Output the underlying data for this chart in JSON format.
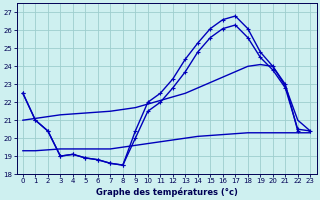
{
  "title": "Graphe des températures (°c)",
  "bg_color": "#cef0f0",
  "grid_color": "#9ecece",
  "line_color": "#0000bb",
  "ylim": [
    18,
    27.5
  ],
  "xlim": [
    -0.5,
    23.5
  ],
  "yticks": [
    18,
    19,
    20,
    21,
    22,
    23,
    24,
    25,
    26,
    27
  ],
  "xticks": [
    0,
    1,
    2,
    3,
    4,
    5,
    6,
    7,
    8,
    9,
    10,
    11,
    12,
    13,
    14,
    15,
    16,
    17,
    18,
    19,
    20,
    21,
    22,
    23
  ],
  "line1_x": [
    0,
    1,
    2,
    3,
    4,
    5,
    6,
    7,
    8,
    9,
    10,
    11,
    12,
    13,
    14,
    15,
    16,
    17,
    18,
    19,
    20,
    21,
    22
  ],
  "line1_y": [
    22.5,
    21.0,
    20.4,
    19.0,
    19.1,
    18.9,
    18.8,
    18.6,
    18.5,
    20.4,
    22.0,
    22.5,
    23.3,
    24.4,
    25.3,
    26.1,
    26.6,
    26.8,
    26.1,
    24.8,
    24.0,
    23.0,
    20.4
  ],
  "line2_x": [
    0,
    1,
    2,
    3,
    4,
    5,
    6,
    7,
    8,
    9,
    10,
    11,
    12,
    13,
    14,
    15,
    16,
    17,
    18,
    19,
    20,
    21,
    22,
    23
  ],
  "line2_y": [
    22.5,
    21.0,
    20.4,
    19.0,
    19.1,
    18.9,
    18.8,
    18.6,
    18.5,
    20.0,
    21.5,
    22.0,
    22.8,
    23.7,
    24.8,
    25.6,
    26.1,
    26.3,
    25.6,
    24.5,
    23.8,
    22.8,
    20.5,
    20.4
  ],
  "line3_x": [
    0,
    1,
    2,
    3,
    4,
    5,
    6,
    7,
    8,
    9,
    10,
    11,
    12,
    13,
    14,
    15,
    16,
    17,
    18,
    19,
    20,
    21,
    22,
    23
  ],
  "line3_y": [
    21.0,
    21.1,
    21.2,
    21.3,
    21.35,
    21.4,
    21.45,
    21.5,
    21.6,
    21.7,
    21.9,
    22.1,
    22.3,
    22.5,
    22.8,
    23.1,
    23.4,
    23.7,
    24.0,
    24.1,
    24.0,
    22.9,
    21.0,
    20.4
  ],
  "line4_x": [
    0,
    1,
    2,
    3,
    4,
    5,
    6,
    7,
    8,
    9,
    10,
    11,
    12,
    13,
    14,
    15,
    16,
    17,
    18,
    19,
    20,
    21,
    22,
    23
  ],
  "line4_y": [
    19.3,
    19.3,
    19.35,
    19.4,
    19.4,
    19.4,
    19.4,
    19.4,
    19.5,
    19.6,
    19.7,
    19.8,
    19.9,
    20.0,
    20.1,
    20.15,
    20.2,
    20.25,
    20.3,
    20.3,
    20.3,
    20.3,
    20.3,
    20.3
  ]
}
